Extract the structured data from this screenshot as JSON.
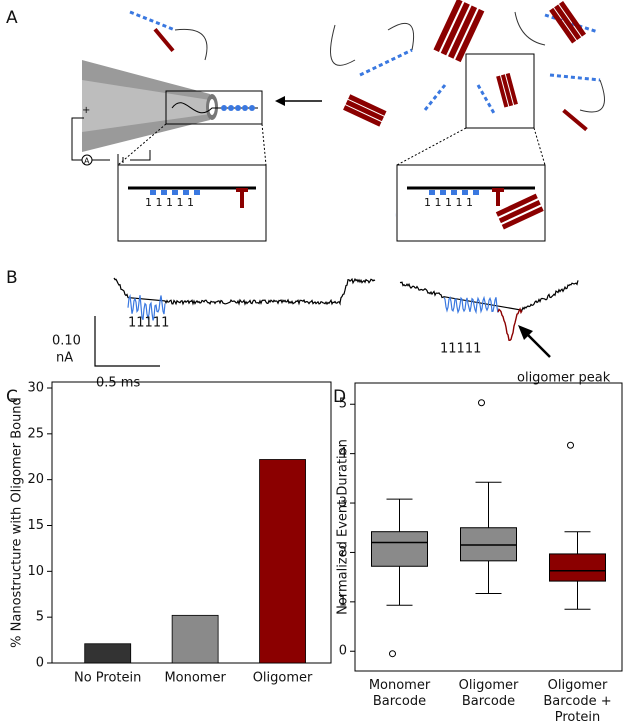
{
  "panels": [
    "A",
    "B",
    "C",
    "D"
  ],
  "diagram": {
    "digits_left": "1 1 1 1 1",
    "digits_right": "1 1 1 1 1",
    "plus": "+",
    "ammeter": "A"
  },
  "trace": {
    "scale_current": "0.10",
    "scale_unit": "nA",
    "scale_time": "0.5 ms",
    "barcode_left": "11111",
    "barcode_right": "11111",
    "annotation": "oligomer peak"
  },
  "chart_data": [
    {
      "type": "bar",
      "ylabel": "% Nanostructure with Oligomer Bound",
      "categories": [
        "No Protein",
        "Monomer",
        "Oligomer"
      ],
      "values": [
        2.1,
        5.2,
        22.2
      ],
      "colors": [
        "#333333",
        "#8a8a8a",
        "#8b0000"
      ],
      "ylim": [
        0,
        30
      ],
      "yticks": [
        0,
        5,
        10,
        15,
        20,
        25,
        30
      ]
    },
    {
      "type": "box",
      "ylabel": "Normalized Event Duration",
      "categories": [
        "Monomer Barcode",
        "Oligomer Barcode",
        "Oligomer Barcode + Protein"
      ],
      "boxes": [
        {
          "low": 0.93,
          "q1": 1.72,
          "median": 2.2,
          "q3": 2.42,
          "high": 3.08,
          "outliers": [
            -0.05
          ],
          "color": "#8a8a8a"
        },
        {
          "low": 1.17,
          "q1": 1.83,
          "median": 2.15,
          "q3": 2.5,
          "high": 3.42,
          "outliers": [
            5.03
          ],
          "color": "#8a8a8a"
        },
        {
          "low": 0.85,
          "q1": 1.42,
          "median": 1.63,
          "q3": 1.97,
          "high": 2.42,
          "outliers": [
            4.17
          ],
          "color": "#8b0000"
        }
      ],
      "ylim": [
        -0.4,
        5.43
      ],
      "yticks": [
        0,
        1,
        2,
        3,
        4,
        5
      ]
    }
  ]
}
